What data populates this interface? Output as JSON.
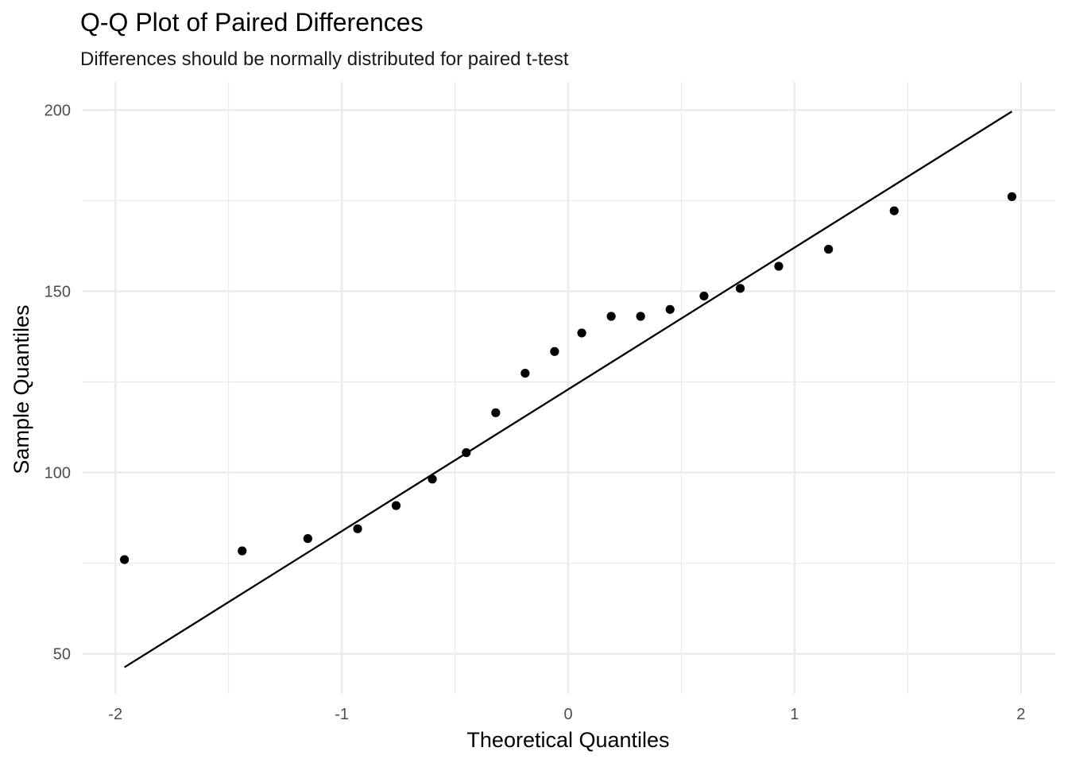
{
  "chart_data": {
    "type": "scatter",
    "title": "Q-Q Plot of Paired Differences",
    "subtitle": "Differences should be normally distributed for paired t-test",
    "xlabel": "Theoretical Quantiles",
    "ylabel": "Sample Quantiles",
    "xlim": [
      -2.1,
      2.1
    ],
    "ylim": [
      40,
      207
    ],
    "x_ticks": [
      -2,
      -1,
      0,
      1,
      2
    ],
    "x_tick_labels": [
      "-2",
      "-1",
      "0",
      "1",
      "2"
    ],
    "y_ticks": [
      50,
      100,
      150,
      200
    ],
    "y_tick_labels": [
      "50",
      "100",
      "150",
      "200"
    ],
    "grid": true,
    "legend": "none",
    "series": [
      {
        "x": [
          -1.96,
          -1.44,
          -1.15,
          -0.93,
          -0.76,
          -0.6,
          -0.45,
          -0.32,
          -0.19,
          -0.06,
          0.06,
          0.19,
          0.32,
          0.45,
          0.6,
          0.76,
          0.93,
          1.15,
          1.44,
          1.96
        ],
        "y": [
          76,
          78.4,
          81.8,
          84.5,
          90.9,
          98.2,
          105.5,
          116.5,
          127.4,
          133.4,
          138.5,
          143.1,
          143.1,
          145,
          148.7,
          150.8,
          156.9,
          161.6,
          172.2,
          176.1
        ]
      }
    ],
    "reference_line": {
      "x": [
        -1.96,
        1.96
      ],
      "y": [
        46.3,
        199.6
      ]
    },
    "colors": {
      "points": "#000000",
      "line": "#000000",
      "grid": "#ebebeb"
    }
  }
}
